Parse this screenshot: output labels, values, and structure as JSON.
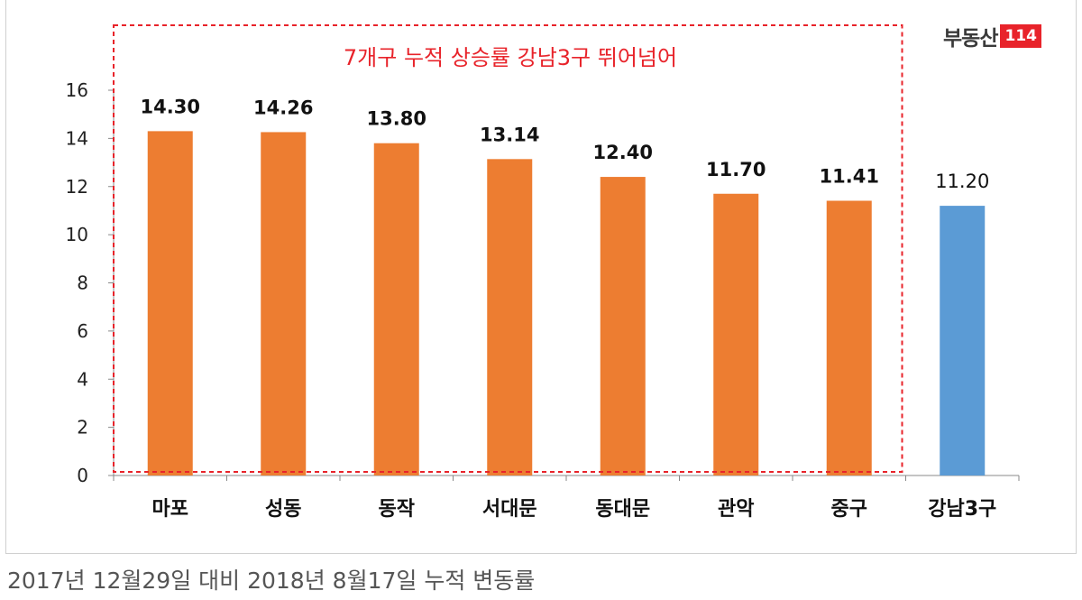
{
  "caption": "2017년 12월29일 대비 2018년 8월17일 누적 변동률",
  "logo": {
    "text": "부동산",
    "number": "114"
  },
  "colors": {
    "bar_default": "#ed7d31",
    "bar_highlight": "#5b9bd5",
    "annotation": "#e8232a",
    "logo_badge": "#e8232a"
  },
  "chart_data": {
    "type": "bar",
    "title": "",
    "xlabel": "",
    "ylabel": "",
    "ylim": [
      0,
      16
    ],
    "yticks": [
      0,
      2,
      4,
      6,
      8,
      10,
      12,
      14,
      16
    ],
    "grid": false,
    "categories": [
      "마포",
      "성동",
      "동작",
      "서대문",
      "동대문",
      "관악",
      "중구",
      "강남3구"
    ],
    "values": [
      14.3,
      14.26,
      13.8,
      13.14,
      12.4,
      11.7,
      11.41,
      11.2
    ],
    "value_labels": [
      "14.30",
      "14.26",
      "13.80",
      "13.14",
      "12.40",
      "11.70",
      "11.41",
      "11.20"
    ],
    "bar_colors": [
      "#ed7d31",
      "#ed7d31",
      "#ed7d31",
      "#ed7d31",
      "#ed7d31",
      "#ed7d31",
      "#ed7d31",
      "#5b9bd5"
    ],
    "bold_value_labels": [
      true,
      true,
      true,
      true,
      true,
      true,
      true,
      false
    ],
    "annotation": {
      "text": "7개구 누적 상승률 강남3구 뛰어넘어",
      "box_covers_categories": 7,
      "style": "dashed red box"
    }
  }
}
